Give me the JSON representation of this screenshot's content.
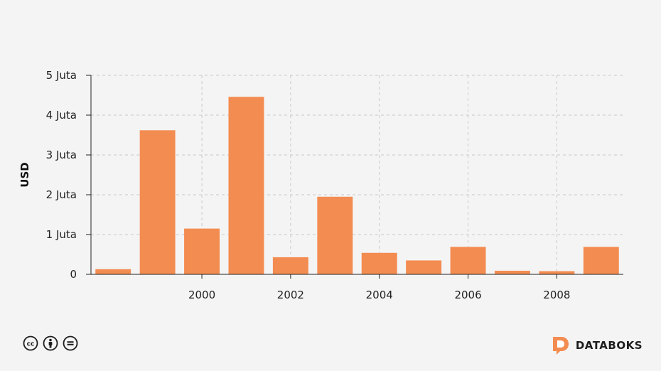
{
  "chart_data": {
    "type": "bar",
    "title": "",
    "xlabel": "",
    "ylabel": "USD",
    "x": [
      1998,
      1999,
      2000,
      2001,
      2002,
      2003,
      2004,
      2005,
      2006,
      2007,
      2008,
      2009
    ],
    "values": [
      130000,
      3620000,
      1150000,
      4460000,
      430000,
      1950000,
      540000,
      350000,
      690000,
      90000,
      80000,
      690000
    ],
    "ylim": [
      0,
      5000000
    ],
    "xlim": [
      1997.5,
      2009.5
    ],
    "y_ticks": [
      {
        "value": 0,
        "label": "0"
      },
      {
        "value": 1000000,
        "label": "1 Juta"
      },
      {
        "value": 2000000,
        "label": "2 Juta"
      },
      {
        "value": 3000000,
        "label": "3 Juta"
      },
      {
        "value": 4000000,
        "label": "4 Juta"
      },
      {
        "value": 5000000,
        "label": "5 Juta"
      }
    ],
    "x_ticks": [
      {
        "value": 2000,
        "label": "2000"
      },
      {
        "value": 2002,
        "label": "2002"
      },
      {
        "value": 2004,
        "label": "2004"
      },
      {
        "value": 2006,
        "label": "2006"
      },
      {
        "value": 2008,
        "label": "2008"
      }
    ],
    "grid": true,
    "bar_color": "#f38c51"
  },
  "footer": {
    "brand_name": "DATABOKS",
    "brand_color": "#f38c51",
    "license_icons": [
      "creative-commons-icon",
      "attribution-icon",
      "no-derivatives-icon"
    ]
  }
}
